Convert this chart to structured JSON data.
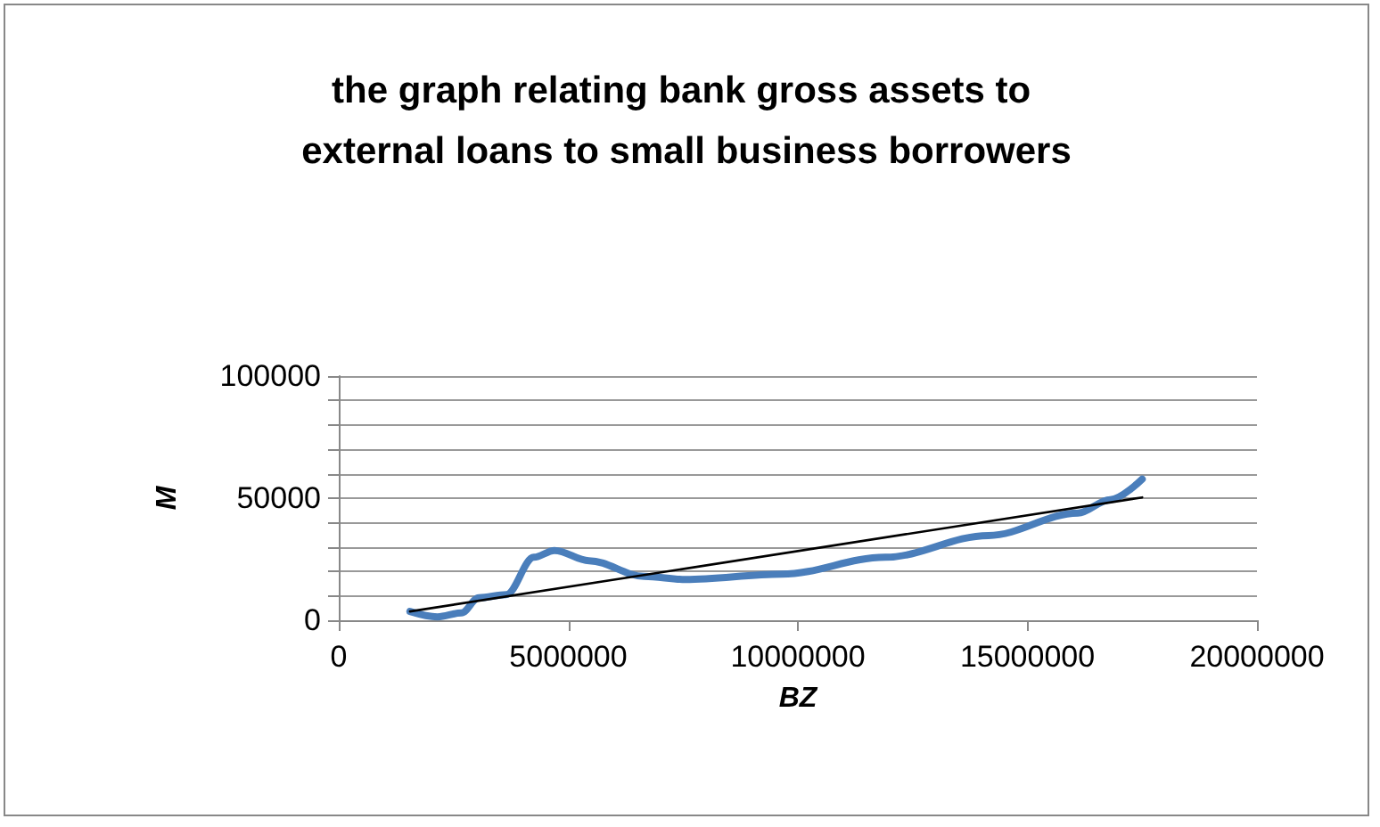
{
  "chart_data": {
    "type": "line",
    "title": "the graph relating bank gross assets to external loans to small business borrowers",
    "xlabel": "BZ",
    "ylabel": "M",
    "series": [
      {
        "color": "#4a7ebb",
        "x": [
          1550000,
          2150000,
          2670000,
          3050000,
          3650000,
          4250000,
          4700000,
          5450000,
          6650000,
          7550000,
          9650000,
          11900000,
          14150000,
          16100000,
          16800000,
          17500000
        ],
        "values": [
          3600,
          1400,
          3000,
          9200,
          10500,
          25800,
          28600,
          24400,
          18000,
          16700,
          18900,
          25800,
          34700,
          43900,
          49400,
          57800
        ]
      },
      {
        "color": "#000000",
        "x": [
          1550000,
          17500000
        ],
        "values": [
          3600,
          50300
        ]
      }
    ],
    "xlim": [
      0,
      20000000
    ],
    "xticks": [
      0,
      5000000,
      10000000,
      15000000,
      20000000
    ],
    "ylim": [
      0,
      100000
    ],
    "yticks": [
      0,
      {
        "value": 10000,
        "label": null
      },
      {
        "value": 20000,
        "label": null
      },
      {
        "value": 30000,
        "label": null
      },
      {
        "value": 40000,
        "label": null
      },
      50000,
      {
        "value": 60000,
        "label": null
      },
      {
        "value": 70000,
        "label": null
      },
      {
        "value": 80000,
        "label": null
      },
      {
        "value": 90000,
        "label": null
      },
      100000
    ],
    "grid": "y",
    "marker": "none",
    "line_style": "solid"
  }
}
